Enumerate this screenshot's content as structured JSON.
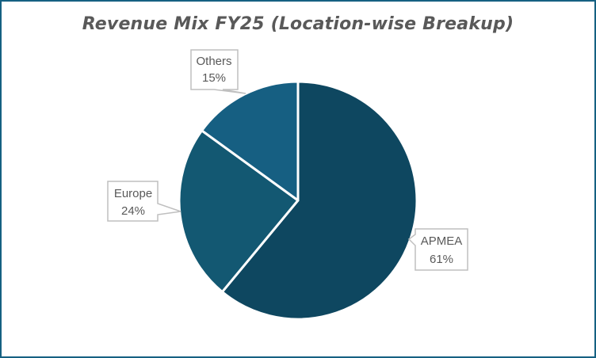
{
  "chart_data": {
    "type": "pie",
    "title": "Revenue Mix FY25 (Location-wise Breakup)",
    "categories": [
      "APMEA",
      "Europe",
      "Others"
    ],
    "values": [
      61,
      24,
      15
    ],
    "unit": "%",
    "colors": [
      "#0E4760",
      "#135872",
      "#165F82"
    ],
    "data_labels": [
      {
        "name": "APMEA",
        "value": "61%"
      },
      {
        "name": "Europe",
        "value": "24%"
      },
      {
        "name": "Others",
        "value": "15%"
      }
    ],
    "legend": "none",
    "start_angle": "12 o'clock, clockwise"
  },
  "colors": {
    "border": "#156082",
    "title": "#595959",
    "label_text": "#595959",
    "callout_border": "#BFBFBF",
    "slice_separator": "#FFFFFF"
  }
}
